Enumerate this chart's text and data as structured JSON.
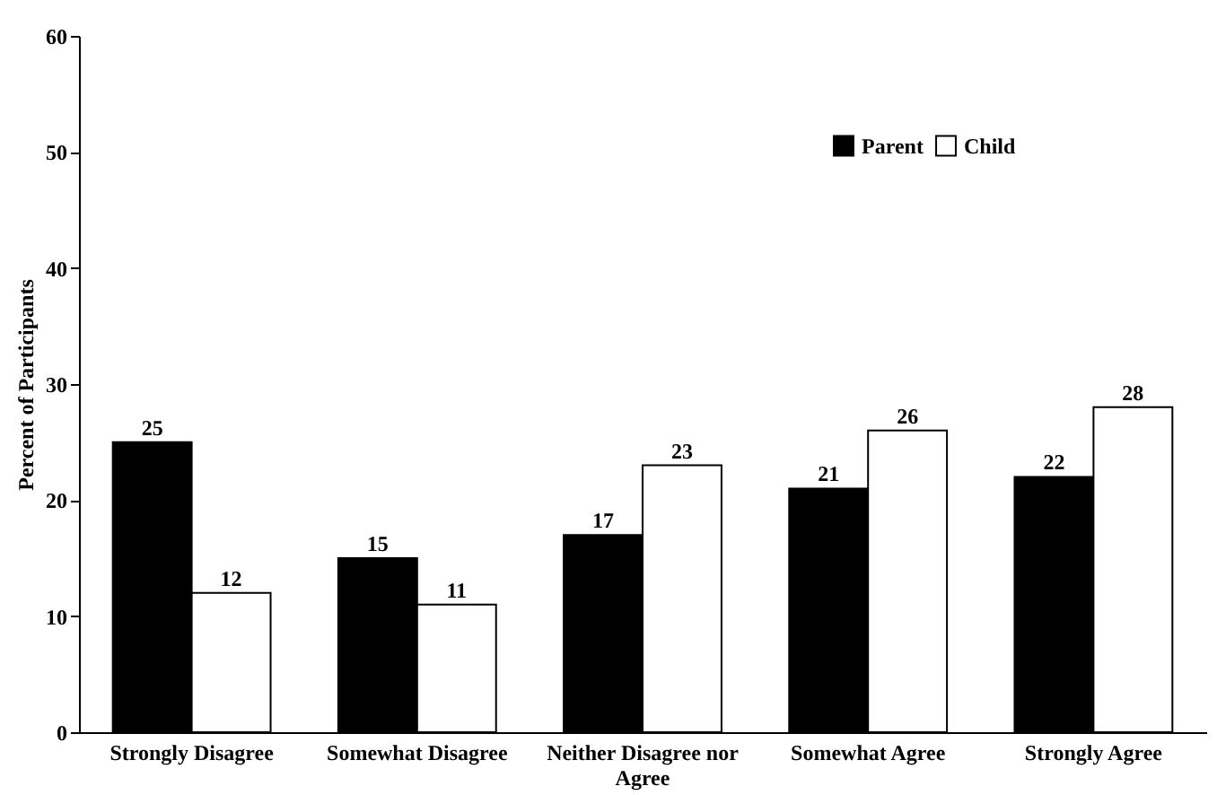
{
  "chart_data": {
    "type": "bar",
    "ylabel": "Percent of Participants",
    "categories": [
      "Strongly Disagree",
      "Somewhat Disagree",
      "Neither Disagree nor Agree",
      "Somewhat Agree",
      "Strongly Agree"
    ],
    "series": [
      {
        "name": "Parent",
        "color": "#000000",
        "values": [
          25,
          15,
          17,
          21,
          22
        ]
      },
      {
        "name": "Child",
        "color": "#ffffff",
        "values": [
          12,
          11,
          23,
          26,
          28
        ]
      }
    ],
    "ylim": [
      0,
      60
    ],
    "yticks": [
      0,
      10,
      20,
      30,
      40,
      50,
      60
    ],
    "grid": false,
    "legend": "top right",
    "data_labels": true
  }
}
